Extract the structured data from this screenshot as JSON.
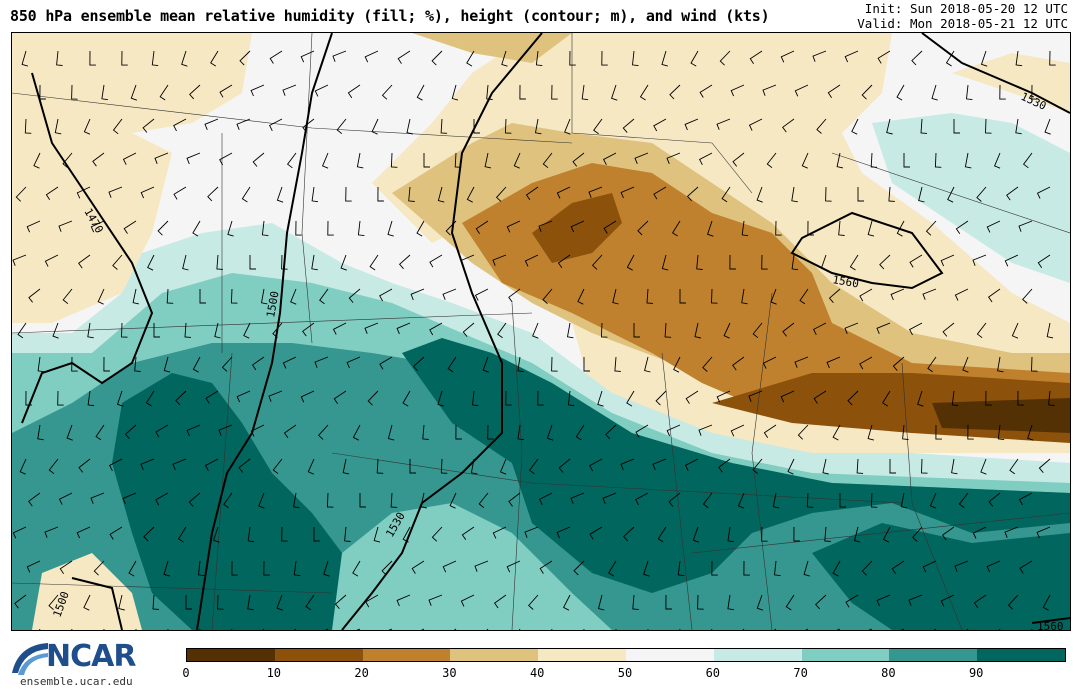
{
  "header": {
    "title": "850 hPa ensemble mean relative humidity (fill; %), height (contour; m), and wind (kts)",
    "init": "Init: Sun 2018-05-20 12 UTC",
    "valid": "Valid: Mon 2018-05-21 12 UTC"
  },
  "logo": {
    "name": "NCAR",
    "url": "ensemble.ucar.edu"
  },
  "colorbar": {
    "ticks": [
      "0",
      "10",
      "20",
      "30",
      "40",
      "50",
      "60",
      "70",
      "80",
      "90"
    ],
    "colors": [
      "#543005",
      "#8c510a",
      "#bf812d",
      "#dfc27d",
      "#f6e8c3",
      "#f5f5f5",
      "#c7eae5",
      "#80cdc1",
      "#35978f",
      "#01665e"
    ]
  },
  "contours": {
    "labels": [
      "1470",
      "1500",
      "1530",
      "1530",
      "1560",
      "1560",
      "1500"
    ]
  }
}
